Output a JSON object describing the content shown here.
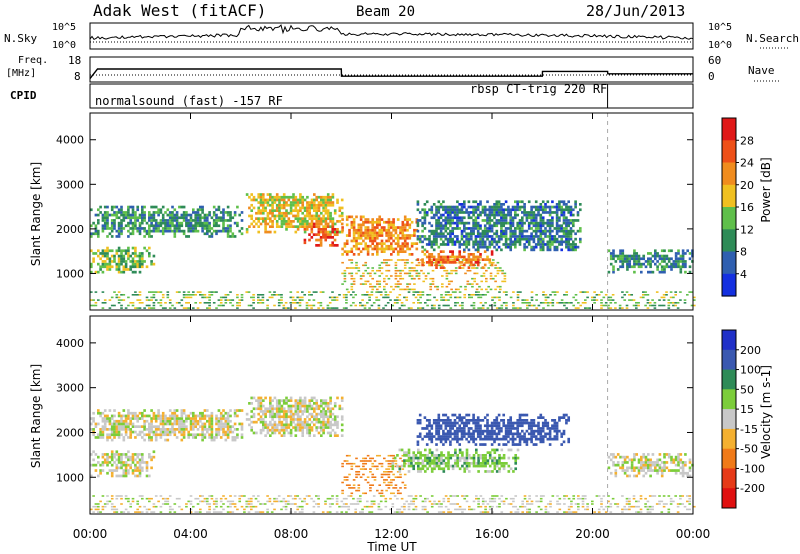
{
  "header": {
    "station": "Adak West (fitACF)",
    "beam": "Beam 20",
    "date": "28/Jun/2013"
  },
  "noise_panel": {
    "left_label": "N.Sky",
    "right_label": "N.Search",
    "left_ticks": [
      "10^5",
      "10^0"
    ],
    "right_ticks": [
      "10^5",
      "10^0"
    ]
  },
  "freq_panel": {
    "left_label_line1": "Freq.",
    "left_label_line2": "[MHz]",
    "right_label": "Nave",
    "left_ticks": [
      "18",
      "8"
    ],
    "right_ticks": [
      "60",
      "0"
    ]
  },
  "cpid_panel": {
    "label": "CPID",
    "modes": [
      {
        "text": "normalsound (fast) -157 RF",
        "start_hour": 0,
        "end_hour": 20.6
      },
      {
        "text": "rbsp CT-trig 220 RF",
        "start_hour": 20.6,
        "end_hour": 24
      }
    ]
  },
  "range_axis": {
    "label": "Slant Range [km]",
    "ticks": [
      "1000",
      "2000",
      "3000",
      "4000"
    ]
  },
  "time_axis": {
    "label": "Time UT",
    "ticks": [
      "00:00",
      "04:00",
      "08:00",
      "12:00",
      "16:00",
      "20:00",
      "00:00"
    ]
  },
  "power_scale": {
    "label": "Power [dB]",
    "ticks": [
      "4",
      "8",
      "12",
      "16",
      "20",
      "24",
      "28"
    ],
    "colors": [
      "#1430e0",
      "#2f5fb0",
      "#2e8b57",
      "#5fbf4a",
      "#f0c020",
      "#f08c1e",
      "#ee5018",
      "#e01818"
    ]
  },
  "velocity_scale": {
    "label": "Velocity [m s-1]",
    "ticks": [
      "200",
      "100",
      "50",
      "15",
      "-15",
      "-50",
      "-100",
      "-200"
    ],
    "colors": [
      "#2030c8",
      "#3a58b0",
      "#2e8b57",
      "#7ccd3a",
      "#c8c8c8",
      "#f4b030",
      "#f07a18",
      "#e63a18",
      "#e01010"
    ]
  },
  "chart_data": [
    {
      "type": "heatmap",
      "quantity": "Power [dB]",
      "x_label": "Time UT",
      "y_label": "Slant Range [km]",
      "x_range_hours": [
        0,
        24
      ],
      "y_range_km": [
        180,
        4600
      ],
      "color_range": [
        0,
        30
      ],
      "echo_regions": [
        {
          "t0": 0.0,
          "t1": 6.0,
          "r0": 1800,
          "r1": 2500,
          "value": 10
        },
        {
          "t0": 0.0,
          "t1": 2.5,
          "r0": 1000,
          "r1": 1600,
          "value": 14
        },
        {
          "t0": 6.2,
          "t1": 10.0,
          "r0": 1900,
          "r1": 2800,
          "value": 18
        },
        {
          "t0": 8.5,
          "t1": 9.8,
          "r0": 1600,
          "r1": 2100,
          "value": 26
        },
        {
          "t0": 10.0,
          "t1": 13.0,
          "r0": 1400,
          "r1": 2300,
          "value": 22
        },
        {
          "t0": 10.0,
          "t1": 16.5,
          "r0": 600,
          "r1": 1300,
          "value": 18
        },
        {
          "t0": 13.0,
          "t1": 16.0,
          "r0": 1100,
          "r1": 1500,
          "value": 24
        },
        {
          "t0": 13.0,
          "t1": 19.5,
          "r0": 1500,
          "r1": 2600,
          "value": 8
        },
        {
          "t0": 20.6,
          "t1": 24.0,
          "r0": 1000,
          "r1": 1500,
          "value": 9
        },
        {
          "t0": 0.0,
          "t1": 24.0,
          "r0": 180,
          "r1": 600,
          "value": 14
        }
      ]
    },
    {
      "type": "heatmap",
      "quantity": "Velocity [m s-1]",
      "x_label": "Time UT",
      "y_label": "Slant Range [km]",
      "x_range_hours": [
        0,
        24
      ],
      "y_range_km": [
        180,
        4600
      ],
      "color_range": [
        -200,
        200
      ],
      "echo_regions": [
        {
          "t0": 0.0,
          "t1": 6.0,
          "r0": 1800,
          "r1": 2500,
          "value": 0
        },
        {
          "t0": 0.0,
          "t1": 2.5,
          "r0": 1000,
          "r1": 1600,
          "value": 0
        },
        {
          "t0": 6.2,
          "t1": 10.0,
          "r0": 1900,
          "r1": 2800,
          "value": 0
        },
        {
          "t0": 10.0,
          "t1": 12.5,
          "r0": 600,
          "r1": 1500,
          "value": -60
        },
        {
          "t0": 12.0,
          "t1": 17.0,
          "r0": 1100,
          "r1": 1600,
          "value": 30
        },
        {
          "t0": 13.0,
          "t1": 19.0,
          "r0": 1700,
          "r1": 2400,
          "value": 150
        },
        {
          "t0": 20.6,
          "t1": 24.0,
          "r0": 1000,
          "r1": 1500,
          "value": 0
        },
        {
          "t0": 0.0,
          "t1": 24.0,
          "r0": 180,
          "r1": 600,
          "value": 0
        }
      ]
    },
    {
      "type": "line",
      "quantity": "Frequency [MHz]",
      "x": [
        0,
        0.3,
        10.0,
        10.01,
        18.0,
        18.01,
        20.6,
        20.61,
        24
      ],
      "y": [
        9,
        13,
        13,
        10,
        10,
        12,
        12,
        11,
        11
      ]
    }
  ]
}
